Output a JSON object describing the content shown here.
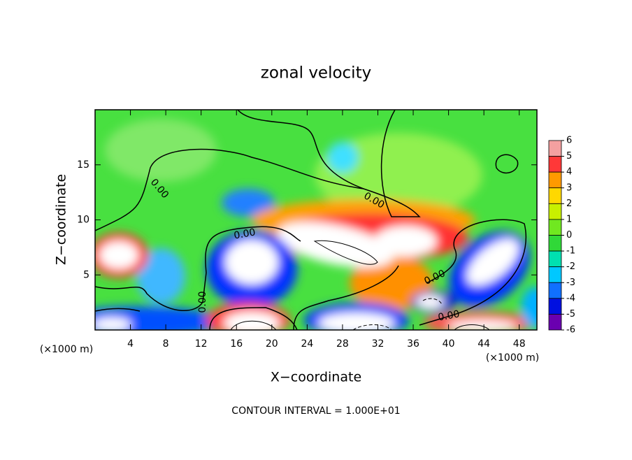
{
  "chart_data": {
    "type": "contour",
    "title": "zonal velocity",
    "x_label": "X−coordinate",
    "y_label": "Z−coordinate",
    "x_unit": "(×1000 m)",
    "y_unit": "(×1000 m)",
    "note": "CONTOUR INTERVAL = 1.000E+01",
    "xlim": [
      0,
      50
    ],
    "xticks": [
      4,
      8,
      12,
      16,
      20,
      24,
      28,
      32,
      36,
      40,
      44,
      48
    ],
    "ylim": [
      0,
      20
    ],
    "yticks": [
      5,
      10,
      15
    ],
    "contour_labels": [
      "0.00",
      "0.00",
      "0.00",
      "0.00",
      "0.00",
      "0.00"
    ],
    "colorbar": {
      "ticks": [
        6,
        5,
        4,
        3,
        2,
        1,
        0,
        -1,
        -2,
        -3,
        -4,
        -5,
        -6
      ],
      "colors": [
        "#f4a0a0",
        "#ff3838",
        "#ff9a00",
        "#ffd800",
        "#c8f000",
        "#70e820",
        "#30d838",
        "#00e0b0",
        "#00c8ff",
        "#1070ff",
        "#0010e0",
        "#6a00b0"
      ]
    }
  }
}
